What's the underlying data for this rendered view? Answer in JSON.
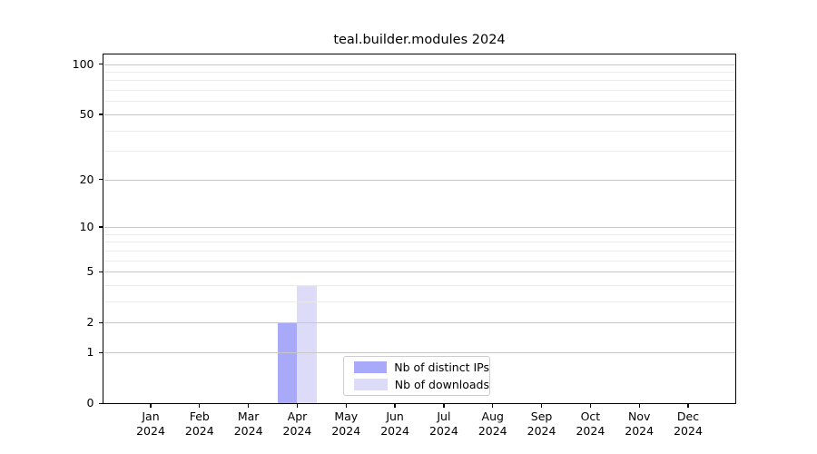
{
  "chart_data": {
    "type": "bar",
    "title": "teal.builder.modules 2024",
    "categories": [
      "Jan 2024",
      "Feb 2024",
      "Mar 2024",
      "Apr 2024",
      "May 2024",
      "Jun 2024",
      "Jul 2024",
      "Aug 2024",
      "Sep 2024",
      "Oct 2024",
      "Nov 2024",
      "Dec 2024"
    ],
    "series": [
      {
        "name": "Nb of distinct IPs",
        "color": "#a9a9f9",
        "values": [
          0,
          0,
          0,
          2,
          0,
          0,
          0,
          0,
          0,
          0,
          0,
          0
        ]
      },
      {
        "name": "Nb of downloads",
        "color": "#dcdcf8",
        "values": [
          0,
          0,
          0,
          4,
          0,
          0,
          0,
          0,
          0,
          0,
          0,
          0
        ]
      }
    ],
    "xlabel": "",
    "ylabel": "",
    "y_scale": "log10(1+y)",
    "ylim": [
      0,
      114
    ],
    "y_major_ticks": [
      0,
      1,
      2,
      5,
      10,
      20,
      50,
      100
    ],
    "y_minor_gridlines": [
      3,
      4,
      6,
      7,
      8,
      9,
      30,
      40,
      60,
      70,
      80,
      90
    ],
    "grid": true,
    "legend_position": "lower center"
  },
  "colors": {
    "grid_major": "#c7c7c7",
    "grid_minor": "#ebebeb",
    "axis": "#000000",
    "background": "#ffffff"
  }
}
